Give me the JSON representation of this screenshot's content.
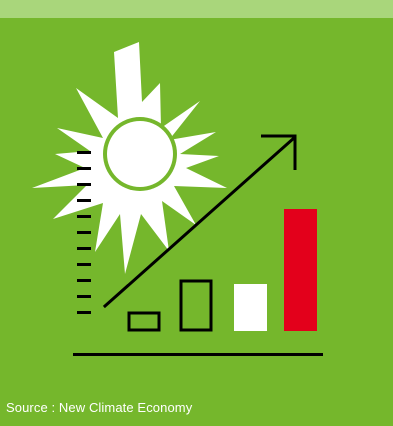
{
  "caption": {
    "source_text": "Source : New Climate Economy"
  },
  "colors": {
    "background": "#75b72c",
    "top_band": "#a9d67b",
    "sun": "#ffffff",
    "line_art": "#000000",
    "highlight_bar": "#e3001b"
  },
  "icons": [
    "sun-icon",
    "growth-arrow-icon",
    "bar-chart-icon"
  ]
}
